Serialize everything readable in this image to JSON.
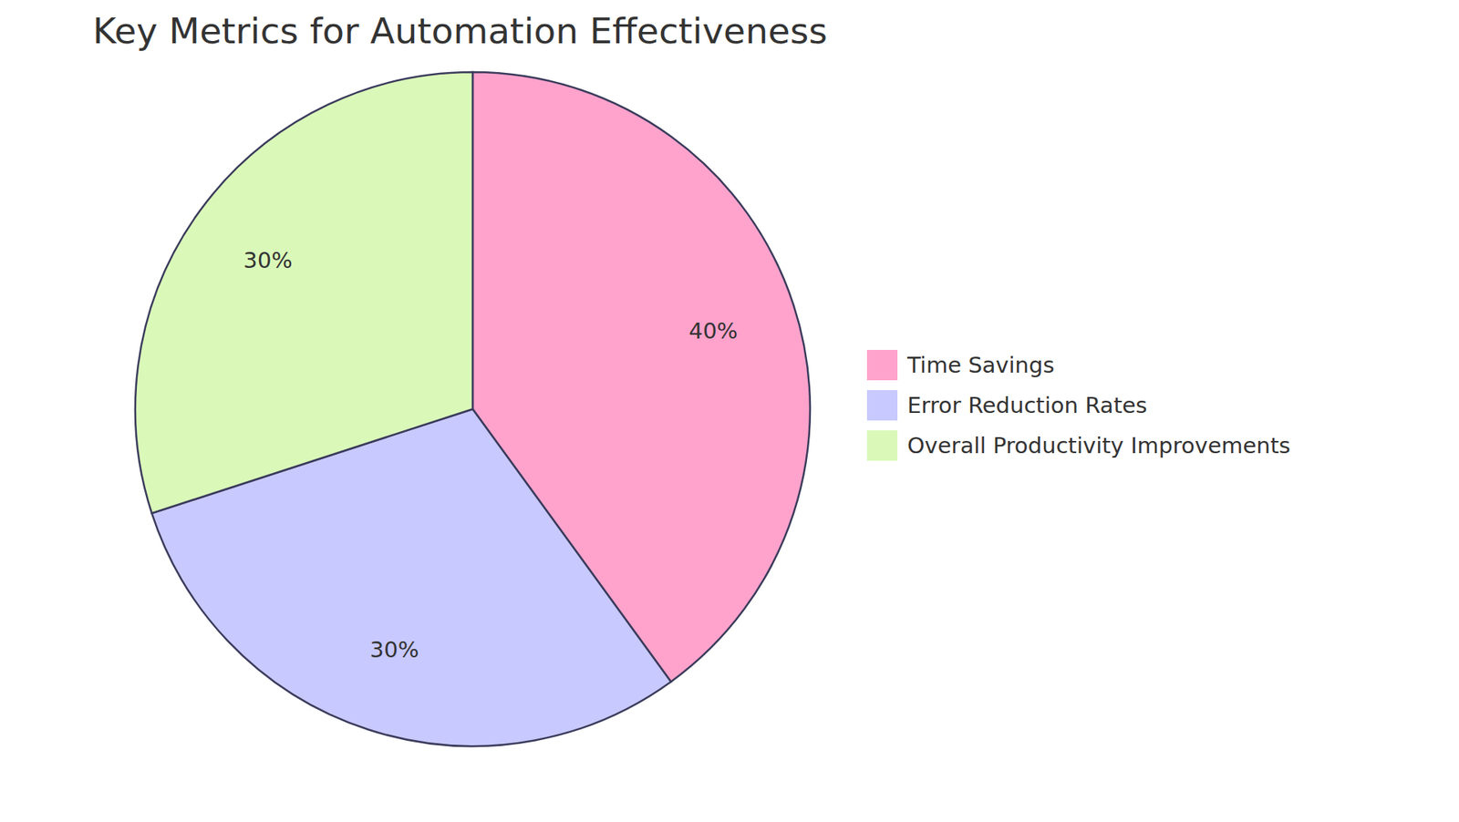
{
  "chart_data": {
    "type": "pie",
    "title": "Key Metrics for Automation Effectiveness",
    "categories": [
      "Time Savings",
      "Error Reduction Rates",
      "Overall Productivity Improvements"
    ],
    "values": [
      40,
      30,
      30
    ],
    "value_labels": [
      "40%",
      "30%",
      "30%"
    ],
    "colors": [
      "#ffa3cc",
      "#c8c9fe",
      "#daf9b9"
    ],
    "data_labels": true,
    "legend": "right"
  }
}
